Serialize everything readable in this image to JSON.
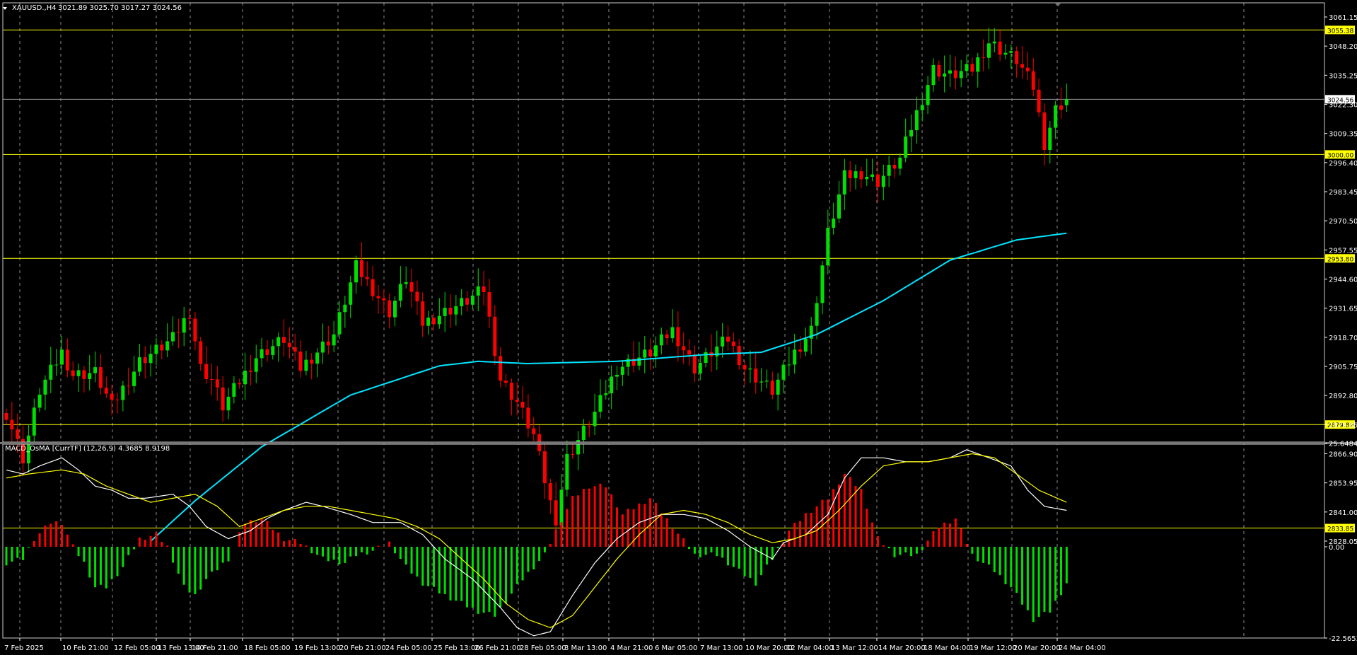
{
  "header": {
    "symbol": "XAUUSD.,H4",
    "ohlc": "3021.89 3025.70 3017.27 3024.56"
  },
  "indicator": {
    "label": "MACD_OsMA [CurrTF] (12,26,9) 4.3685 8.9198"
  },
  "colors": {
    "background": "#000000",
    "bull": "#00e000",
    "bear": "#ff0000",
    "ma": "#00e5ff",
    "level": "#ffff00",
    "grid": "#ffffff",
    "macd_line": "#ffffff",
    "signal_line": "#ffff00"
  },
  "price_axis": {
    "ticks": [
      "3061.15",
      "3048.20",
      "3035.25",
      "3022.30",
      "3009.35",
      "2996.40",
      "2983.45",
      "2970.50",
      "2957.55",
      "2944.60",
      "2931.65",
      "2918.70",
      "2905.75",
      "2892.80",
      "2879.85",
      "2866.90",
      "2853.95",
      "2841.00",
      "2828.05"
    ]
  },
  "current_price": "3024.56",
  "levels": [
    "3055.38",
    "3000.00",
    "2953.80",
    "2879.89",
    "2833.85"
  ],
  "macd_axis": [
    "25.6484",
    "0.00",
    "-22.5653"
  ],
  "time_axis": [
    "7 Feb 2025",
    "10 Feb 21:00",
    "12 Feb 05:00",
    "13 Feb 13:00",
    "14 Feb 21:00",
    "18 Feb 05:00",
    "19 Feb 13:00",
    "20 Feb 21:00",
    "24 Feb 05:00",
    "25 Feb 13:00",
    "26 Feb 21:00",
    "28 Feb 05:00",
    "3 Mar 13:00",
    "4 Mar 21:00",
    "6 Mar 05:00",
    "7 Mar 13:00",
    "10 Mar 20:00",
    "12 Mar 04:00",
    "13 Mar 12:00",
    "14 Mar 20:00",
    "18 Mar 04:00",
    "19 Mar 12:00",
    "20 Mar 20:00",
    "24 Mar 04:00"
  ],
  "chart_data": {
    "type": "candlestick",
    "title": "XAUUSD.,H4",
    "timeframe": "H4",
    "ylim": [
      2828.05,
      3066
    ],
    "close_path": [
      [
        0,
        2885
      ],
      [
        3,
        2865
      ],
      [
        6,
        2895
      ],
      [
        10,
        2912
      ],
      [
        12,
        2902
      ],
      [
        16,
        2903
      ],
      [
        19,
        2888
      ],
      [
        24,
        2908
      ],
      [
        30,
        2918
      ],
      [
        33,
        2930
      ],
      [
        35,
        2905
      ],
      [
        37,
        2900
      ],
      [
        39,
        2888
      ],
      [
        45,
        2910
      ],
      [
        50,
        2918
      ],
      [
        53,
        2905
      ],
      [
        59,
        2920
      ],
      [
        63,
        2950
      ],
      [
        66,
        2940
      ],
      [
        69,
        2930
      ],
      [
        72,
        2945
      ],
      [
        75,
        2925
      ],
      [
        83,
        2935
      ],
      [
        86,
        2940
      ],
      [
        89,
        2900
      ],
      [
        92,
        2890
      ],
      [
        95,
        2875
      ],
      [
        98,
        2845
      ],
      [
        99,
        2838
      ],
      [
        101,
        2865
      ],
      [
        106,
        2885
      ],
      [
        110,
        2905
      ],
      [
        116,
        2912
      ],
      [
        120,
        2922
      ],
      [
        124,
        2905
      ],
      [
        127,
        2912
      ],
      [
        130,
        2918
      ],
      [
        133,
        2905
      ],
      [
        138,
        2895
      ],
      [
        142,
        2912
      ],
      [
        145,
        2922
      ],
      [
        148,
        2965
      ],
      [
        151,
        2990
      ],
      [
        154,
        2992
      ],
      [
        157,
        2988
      ],
      [
        161,
        2998
      ],
      [
        163,
        3012
      ],
      [
        167,
        3038
      ],
      [
        170,
        3035
      ],
      [
        174,
        3038
      ],
      [
        177,
        3050
      ],
      [
        182,
        3042
      ],
      [
        185,
        3030
      ],
      [
        187,
        3005
      ],
      [
        189,
        3020
      ],
      [
        191,
        3024.56
      ]
    ],
    "ma200": [
      [
        26,
        2828
      ],
      [
        34,
        2846
      ],
      [
        46,
        2870
      ],
      [
        62,
        2893
      ],
      [
        78,
        2906
      ],
      [
        85,
        2908
      ],
      [
        94,
        2907
      ],
      [
        110,
        2908
      ],
      [
        126,
        2911
      ],
      [
        136,
        2912
      ],
      [
        146,
        2920
      ],
      [
        158,
        2935
      ],
      [
        170,
        2953
      ],
      [
        182,
        2962
      ],
      [
        191,
        2965
      ]
    ],
    "macd_osma": {
      "ylim": [
        -22.5653,
        25.6484
      ],
      "histogram": [
        [
          0,
          -4
        ],
        [
          3,
          -3
        ],
        [
          5,
          2
        ],
        [
          8,
          6
        ],
        [
          10,
          6
        ],
        [
          12,
          0
        ],
        [
          14,
          -4
        ],
        [
          16,
          -10
        ],
        [
          18,
          -10
        ],
        [
          21,
          -5
        ],
        [
          24,
          2
        ],
        [
          27,
          3
        ],
        [
          29,
          0
        ],
        [
          32,
          -10
        ],
        [
          34,
          -12
        ],
        [
          36,
          -8
        ],
        [
          40,
          -3
        ],
        [
          43,
          6
        ],
        [
          46,
          7
        ],
        [
          50,
          2
        ],
        [
          53,
          1
        ],
        [
          57,
          -3
        ],
        [
          61,
          -4
        ],
        [
          63,
          -2
        ],
        [
          66,
          -1
        ],
        [
          69,
          1
        ],
        [
          72,
          -5
        ],
        [
          75,
          -9
        ],
        [
          79,
          -12
        ],
        [
          82,
          -14
        ],
        [
          85,
          -16
        ],
        [
          88,
          -17
        ],
        [
          93,
          -8
        ],
        [
          97,
          -2
        ],
        [
          99,
          4
        ],
        [
          102,
          12
        ],
        [
          105,
          15
        ],
        [
          108,
          15
        ],
        [
          111,
          8
        ],
        [
          116,
          12
        ],
        [
          120,
          5
        ],
        [
          124,
          -2
        ],
        [
          128,
          -2
        ],
        [
          132,
          -6
        ],
        [
          135,
          -9
        ],
        [
          138,
          -3
        ],
        [
          141,
          4
        ],
        [
          144,
          8
        ],
        [
          148,
          12
        ],
        [
          151,
          18
        ],
        [
          154,
          14
        ],
        [
          157,
          2
        ],
        [
          160,
          -2
        ],
        [
          164,
          -2
        ],
        [
          168,
          5
        ],
        [
          171,
          7
        ],
        [
          174,
          -2
        ],
        [
          178,
          -6
        ],
        [
          181,
          -10
        ],
        [
          185,
          -18
        ],
        [
          188,
          -16
        ],
        [
          191,
          -9
        ]
      ],
      "macd_line": [
        [
          0,
          19
        ],
        [
          3,
          18
        ],
        [
          6,
          20
        ],
        [
          10,
          22
        ],
        [
          13,
          19
        ],
        [
          16,
          15
        ],
        [
          19,
          14
        ],
        [
          22,
          12
        ],
        [
          25,
          12
        ],
        [
          30,
          13
        ],
        [
          33,
          10
        ],
        [
          36,
          5
        ],
        [
          40,
          2
        ],
        [
          44,
          4
        ],
        [
          47,
          7
        ],
        [
          50,
          9
        ],
        [
          54,
          11
        ],
        [
          57,
          10
        ],
        [
          62,
          8
        ],
        [
          66,
          6
        ],
        [
          71,
          6
        ],
        [
          75,
          3
        ],
        [
          79,
          -3
        ],
        [
          84,
          -8
        ],
        [
          89,
          -15
        ],
        [
          92,
          -20
        ],
        [
          95,
          -22
        ],
        [
          98,
          -21
        ],
        [
          102,
          -12
        ],
        [
          106,
          -4
        ],
        [
          110,
          2
        ],
        [
          114,
          6
        ],
        [
          118,
          8
        ],
        [
          122,
          8
        ],
        [
          126,
          7
        ],
        [
          130,
          4
        ],
        [
          134,
          0
        ],
        [
          138,
          -3
        ],
        [
          140,
          1
        ],
        [
          144,
          3
        ],
        [
          148,
          8
        ],
        [
          151,
          17
        ],
        [
          154,
          22
        ],
        [
          158,
          22
        ],
        [
          162,
          21
        ],
        [
          166,
          21
        ],
        [
          170,
          22
        ],
        [
          173,
          24
        ],
        [
          177,
          22
        ],
        [
          181,
          20
        ],
        [
          184,
          14
        ],
        [
          187,
          10
        ],
        [
          191,
          9
        ]
      ],
      "signal_line": [
        [
          0,
          17
        ],
        [
          4,
          18
        ],
        [
          10,
          19
        ],
        [
          14,
          18
        ],
        [
          18,
          15
        ],
        [
          22,
          13
        ],
        [
          26,
          11
        ],
        [
          30,
          12
        ],
        [
          34,
          13
        ],
        [
          38,
          10
        ],
        [
          42,
          5
        ],
        [
          46,
          7
        ],
        [
          50,
          9
        ],
        [
          54,
          10
        ],
        [
          58,
          10
        ],
        [
          62,
          9
        ],
        [
          66,
          8
        ],
        [
          70,
          7
        ],
        [
          74,
          5
        ],
        [
          78,
          2
        ],
        [
          82,
          -3
        ],
        [
          86,
          -8
        ],
        [
          90,
          -14
        ],
        [
          94,
          -18
        ],
        [
          98,
          -20
        ],
        [
          102,
          -17
        ],
        [
          106,
          -10
        ],
        [
          110,
          -3
        ],
        [
          114,
          3
        ],
        [
          118,
          8
        ],
        [
          122,
          9
        ],
        [
          126,
          8
        ],
        [
          130,
          6
        ],
        [
          134,
          3
        ],
        [
          138,
          1
        ],
        [
          142,
          2
        ],
        [
          146,
          4
        ],
        [
          150,
          9
        ],
        [
          154,
          15
        ],
        [
          158,
          20
        ],
        [
          162,
          21
        ],
        [
          166,
          21
        ],
        [
          170,
          22
        ],
        [
          174,
          23
        ],
        [
          178,
          22
        ],
        [
          182,
          18
        ],
        [
          186,
          14
        ],
        [
          191,
          11
        ]
      ]
    },
    "time_ticks": [
      "7 Feb 2025",
      "10 Feb 21:00",
      "12 Feb 05:00",
      "13 Feb 13:00",
      "14 Feb 21:00",
      "18 Feb 05:00",
      "19 Feb 13:00",
      "20 Feb 21:00",
      "24 Feb 05:00",
      "25 Feb 13:00",
      "26 Feb 21:00",
      "28 Feb 05:00",
      "3 Mar 13:00",
      "4 Mar 21:00",
      "6 Mar 05:00",
      "7 Mar 13:00",
      "10 Mar 20:00",
      "12 Mar 04:00",
      "13 Mar 12:00",
      "14 Mar 20:00",
      "18 Mar 04:00",
      "19 Mar 12:00",
      "20 Mar 20:00",
      "24 Mar 04:00"
    ],
    "legend": "none",
    "grid": true
  }
}
